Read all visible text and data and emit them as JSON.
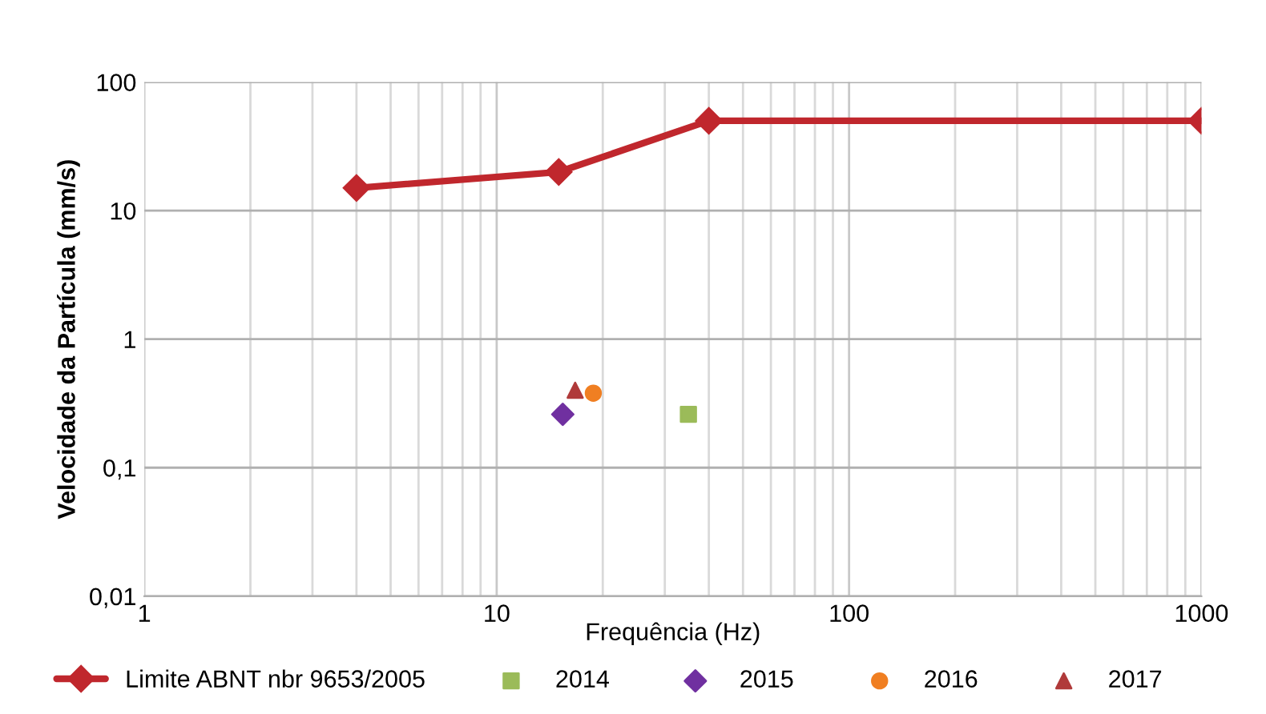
{
  "chart_data": {
    "type": "scatter",
    "xlabel": "Frequência (Hz)",
    "ylabel": "Velocidade da Partícula (mm/s)",
    "log": "xy",
    "xlim": [
      1,
      1000
    ],
    "ylim": [
      0.01,
      100
    ],
    "xticks": [
      1,
      10,
      100,
      1000
    ],
    "yticks": [
      {
        "value": 0.01,
        "label": "0,01"
      },
      {
        "value": 0.1,
        "label": "0,1"
      },
      {
        "value": 1,
        "label": "1"
      },
      {
        "value": 10,
        "label": "10"
      },
      {
        "value": 100,
        "label": "100"
      }
    ],
    "grid": true,
    "legend": "bottom",
    "series": [
      {
        "name": "Limite ABNT nbr 9653/2005",
        "type": "line",
        "marker": "diamond",
        "color": "#c0272d",
        "x": [
          4,
          15,
          40,
          1000
        ],
        "values": [
          15,
          20,
          50,
          50
        ]
      },
      {
        "name": "2014",
        "marker": "square",
        "color": "#9bbb59",
        "x": [
          35
        ],
        "values": [
          0.26
        ]
      },
      {
        "name": "2015",
        "marker": "diamond",
        "color": "#7030a0",
        "x": [
          15.4
        ],
        "values": [
          0.26
        ]
      },
      {
        "name": "2016",
        "marker": "circle",
        "color": "#f07f22",
        "x": [
          18.8
        ],
        "values": [
          0.38
        ]
      },
      {
        "name": "2017",
        "marker": "triangle",
        "color": "#b03a3a",
        "x": [
          16.7
        ],
        "values": [
          0.4
        ]
      }
    ]
  }
}
